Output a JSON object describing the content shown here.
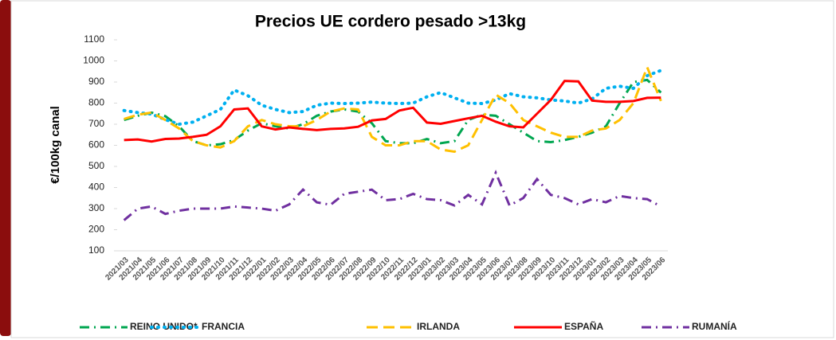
{
  "chart_data": {
    "type": "line",
    "title": "Precios UE cordero pesado >13kg",
    "y_label": "€/100kg canal",
    "categories": [
      "2021/03",
      "2021/04",
      "2021/05",
      "2021/06",
      "2021/07",
      "2021/08",
      "2021/09",
      "2021/10",
      "2021/11",
      "2021/12",
      "2022/01",
      "2022/02",
      "2022/03",
      "2022/04",
      "2022/05",
      "2022/06",
      "2022/07",
      "2022/08",
      "2022/09",
      "2022/10",
      "2022/11",
      "2022/12",
      "2023/01",
      "2023/02",
      "2023/03",
      "2023/04",
      "2023/05",
      "2023/06",
      "2023/07",
      "2023/08",
      "2023/09",
      "2023/10",
      "2023/11",
      "2023/12",
      "2023/01",
      "2023/02",
      "2023/03",
      "2023/04",
      "2023/05",
      "2023/06"
    ],
    "series": [
      {
        "name": "REINO UNIDO*",
        "color": "#00a650",
        "style": "dashdot",
        "values": [
          720,
          740,
          755,
          738,
          690,
          620,
          600,
          605,
          625,
          670,
          705,
          690,
          680,
          700,
          740,
          760,
          770,
          760,
          705,
          620,
          610,
          610,
          630,
          610,
          620,
          720,
          745,
          740,
          700,
          660,
          620,
          615,
          625,
          640,
          660,
          690,
          800,
          900,
          910,
          850
        ]
      },
      {
        "name": "FRANCIA",
        "color": "#00b0f0",
        "style": "dot",
        "values": [
          765,
          755,
          748,
          722,
          700,
          710,
          740,
          770,
          862,
          835,
          790,
          770,
          755,
          760,
          790,
          800,
          798,
          800,
          805,
          800,
          798,
          800,
          830,
          850,
          825,
          800,
          798,
          815,
          845,
          830,
          825,
          815,
          810,
          800,
          820,
          870,
          880,
          870,
          930,
          955
        ]
      },
      {
        "name": "IRLANDA",
        "color": "#ffc000",
        "style": "dash",
        "values": [
          725,
          745,
          755,
          720,
          680,
          620,
          600,
          590,
          620,
          690,
          720,
          700,
          690,
          690,
          720,
          760,
          775,
          770,
          640,
          600,
          600,
          620,
          620,
          580,
          570,
          600,
          720,
          840,
          800,
          720,
          690,
          660,
          640,
          640,
          670,
          680,
          720,
          800,
          970,
          810
        ]
      },
      {
        "name": "ESPAÑA",
        "color": "#ff0000",
        "style": "solid",
        "values": [
          625,
          628,
          618,
          630,
          632,
          640,
          650,
          690,
          770,
          775,
          690,
          675,
          685,
          678,
          672,
          678,
          680,
          688,
          718,
          725,
          765,
          778,
          708,
          702,
          715,
          728,
          740,
          712,
          690,
          685,
          750,
          815,
          905,
          903,
          812,
          806,
          806,
          810,
          825,
          826
        ]
      },
      {
        "name": "RUMANÍA",
        "color": "#7030a0",
        "style": "dashdot",
        "values": [
          245,
          300,
          310,
          275,
          290,
          300,
          300,
          300,
          310,
          305,
          300,
          290,
          320,
          390,
          330,
          318,
          370,
          380,
          390,
          340,
          345,
          370,
          345,
          340,
          315,
          365,
          320,
          470,
          315,
          350,
          440,
          365,
          350,
          320,
          345,
          330,
          360,
          350,
          345,
          310
        ]
      }
    ],
    "ylim": [
      100,
      1100
    ],
    "yticks": [
      100,
      200,
      300,
      400,
      500,
      600,
      700,
      800,
      900,
      1000,
      1100
    ],
    "grid": false,
    "legend": "bottom"
  }
}
